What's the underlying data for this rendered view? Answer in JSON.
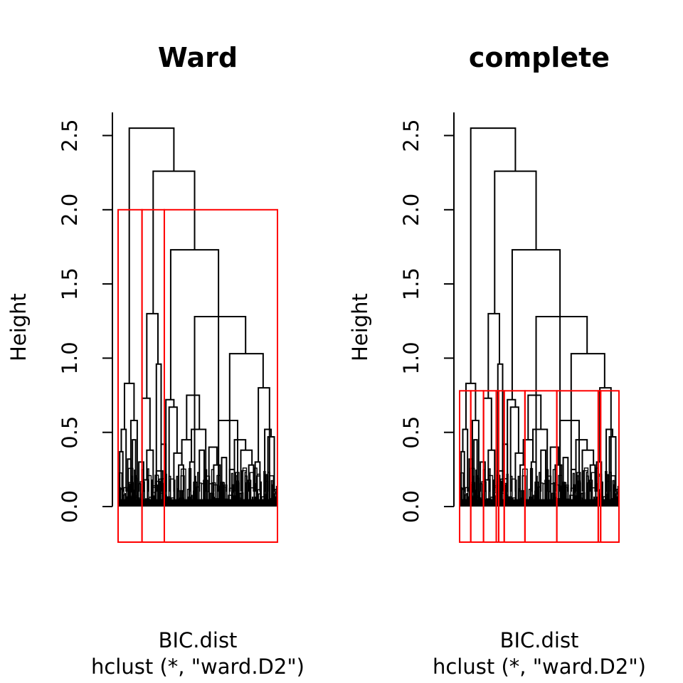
{
  "chart_data": [
    {
      "type": "dendrogram",
      "title": "Ward",
      "ylabel": "Height",
      "xlabel": "BIC.dist",
      "sub": "hclust (*, \"ward.D2\")",
      "ylim": [
        0,
        2.65
      ],
      "yticks": [
        "0.0",
        "0.5",
        "1.0",
        "1.5",
        "2.0",
        "2.5"
      ],
      "cut_height": 2.0,
      "cluster_boxes": [
        [
          0,
          15
        ],
        [
          15,
          29
        ],
        [
          29,
          100
        ]
      ],
      "merges": [
        {
          "x1": 7,
          "x2": 35,
          "h": 2.55
        },
        {
          "x1": 22,
          "x2": 48,
          "h": 2.26
        },
        {
          "x1": 33,
          "x2": 63,
          "h": 1.73
        },
        {
          "x1": 48,
          "x2": 80,
          "h": 1.28
        },
        {
          "x1": 70,
          "x2": 91,
          "h": 1.03
        },
        {
          "x1": 4,
          "x2": 10,
          "h": 0.83
        },
        {
          "x1": 18,
          "x2": 25,
          "h": 1.3
        },
        {
          "x1": 15,
          "x2": 20,
          "h": 0.73
        },
        {
          "x1": 24,
          "x2": 27,
          "h": 0.96
        },
        {
          "x1": 30,
          "x2": 35,
          "h": 0.72
        },
        {
          "x1": 32,
          "x2": 37,
          "h": 0.67
        },
        {
          "x1": 43,
          "x2": 51,
          "h": 0.75
        },
        {
          "x1": 63,
          "x2": 75,
          "h": 0.58
        },
        {
          "x1": 88,
          "x2": 95,
          "h": 0.8
        },
        {
          "x1": 2,
          "x2": 5,
          "h": 0.52
        },
        {
          "x1": 8,
          "x2": 12,
          "h": 0.58
        },
        {
          "x1": 9,
          "x2": 11,
          "h": 0.45
        },
        {
          "x1": 46,
          "x2": 55,
          "h": 0.52
        },
        {
          "x1": 40,
          "x2": 46,
          "h": 0.45
        },
        {
          "x1": 73,
          "x2": 80,
          "h": 0.45
        },
        {
          "x1": 77,
          "x2": 84,
          "h": 0.38
        },
        {
          "x1": 92,
          "x2": 96,
          "h": 0.52
        },
        {
          "x1": 18,
          "x2": 22,
          "h": 0.38
        },
        {
          "x1": 27,
          "x2": 30,
          "h": 0.42
        },
        {
          "x1": 57,
          "x2": 62,
          "h": 0.4
        },
        {
          "x1": 35,
          "x2": 40,
          "h": 0.36
        },
        {
          "x1": 51,
          "x2": 54,
          "h": 0.38
        },
        {
          "x1": 65,
          "x2": 68,
          "h": 0.33
        },
        {
          "x1": 82,
          "x2": 85,
          "h": 0.28
        },
        {
          "x1": 94,
          "x2": 98,
          "h": 0.47
        },
        {
          "x1": 1,
          "x2": 3,
          "h": 0.37
        },
        {
          "x1": 13,
          "x2": 16,
          "h": 0.3
        },
        {
          "x1": 60,
          "x2": 64,
          "h": 0.28
        },
        {
          "x1": 70,
          "x2": 73,
          "h": 0.25
        },
        {
          "x1": 86,
          "x2": 89,
          "h": 0.3
        },
        {
          "x1": 45,
          "x2": 48,
          "h": 0.3
        },
        {
          "x1": 24,
          "x2": 28,
          "h": 0.24
        },
        {
          "x1": 6,
          "x2": 8,
          "h": 0.32
        },
        {
          "x1": 16,
          "x2": 19,
          "h": 0.18
        },
        {
          "x1": 38,
          "x2": 41,
          "h": 0.28
        }
      ]
    },
    {
      "type": "dendrogram",
      "title": "complete",
      "ylabel": "Height",
      "xlabel": "BIC.dist",
      "sub": "hclust (*, \"ward.D2\")",
      "ylim": [
        0,
        2.65
      ],
      "yticks": [
        "0.0",
        "0.5",
        "1.0",
        "1.5",
        "2.0",
        "2.5"
      ],
      "cut_height": 0.78,
      "cluster_boxes": [
        [
          0,
          7
        ],
        [
          7,
          15
        ],
        [
          15,
          23
        ],
        [
          23,
          24.5
        ],
        [
          24.5,
          28
        ],
        [
          28,
          41
        ],
        [
          41,
          61
        ],
        [
          61,
          87
        ],
        [
          87,
          88.5
        ],
        [
          88.5,
          100
        ]
      ],
      "merges": [
        {
          "x1": 7,
          "x2": 35,
          "h": 2.55
        },
        {
          "x1": 22,
          "x2": 48,
          "h": 2.26
        },
        {
          "x1": 33,
          "x2": 63,
          "h": 1.73
        },
        {
          "x1": 48,
          "x2": 80,
          "h": 1.28
        },
        {
          "x1": 70,
          "x2": 91,
          "h": 1.03
        },
        {
          "x1": 4,
          "x2": 10,
          "h": 0.83
        },
        {
          "x1": 18,
          "x2": 25,
          "h": 1.3
        },
        {
          "x1": 15,
          "x2": 20,
          "h": 0.73
        },
        {
          "x1": 24,
          "x2": 27,
          "h": 0.96
        },
        {
          "x1": 30,
          "x2": 35,
          "h": 0.72
        },
        {
          "x1": 32,
          "x2": 37,
          "h": 0.67
        },
        {
          "x1": 43,
          "x2": 51,
          "h": 0.75
        },
        {
          "x1": 63,
          "x2": 75,
          "h": 0.58
        },
        {
          "x1": 88,
          "x2": 95,
          "h": 0.8
        },
        {
          "x1": 2,
          "x2": 5,
          "h": 0.52
        },
        {
          "x1": 8,
          "x2": 12,
          "h": 0.58
        },
        {
          "x1": 9,
          "x2": 11,
          "h": 0.45
        },
        {
          "x1": 46,
          "x2": 55,
          "h": 0.52
        },
        {
          "x1": 40,
          "x2": 46,
          "h": 0.45
        },
        {
          "x1": 73,
          "x2": 80,
          "h": 0.45
        },
        {
          "x1": 77,
          "x2": 84,
          "h": 0.38
        },
        {
          "x1": 92,
          "x2": 96,
          "h": 0.52
        },
        {
          "x1": 18,
          "x2": 22,
          "h": 0.38
        },
        {
          "x1": 27,
          "x2": 30,
          "h": 0.42
        },
        {
          "x1": 57,
          "x2": 62,
          "h": 0.4
        },
        {
          "x1": 35,
          "x2": 40,
          "h": 0.36
        },
        {
          "x1": 51,
          "x2": 54,
          "h": 0.38
        },
        {
          "x1": 65,
          "x2": 68,
          "h": 0.33
        },
        {
          "x1": 82,
          "x2": 85,
          "h": 0.28
        },
        {
          "x1": 94,
          "x2": 98,
          "h": 0.47
        },
        {
          "x1": 1,
          "x2": 3,
          "h": 0.37
        },
        {
          "x1": 13,
          "x2": 16,
          "h": 0.3
        },
        {
          "x1": 60,
          "x2": 64,
          "h": 0.28
        },
        {
          "x1": 70,
          "x2": 73,
          "h": 0.25
        },
        {
          "x1": 86,
          "x2": 89,
          "h": 0.3
        },
        {
          "x1": 45,
          "x2": 48,
          "h": 0.3
        },
        {
          "x1": 24,
          "x2": 28,
          "h": 0.24
        },
        {
          "x1": 6,
          "x2": 8,
          "h": 0.32
        },
        {
          "x1": 16,
          "x2": 19,
          "h": 0.18
        },
        {
          "x1": 38,
          "x2": 41,
          "h": 0.28
        }
      ]
    }
  ],
  "colors": {
    "tree": "#000000",
    "cluster_box": "#ff0000",
    "background": "#ffffff"
  }
}
